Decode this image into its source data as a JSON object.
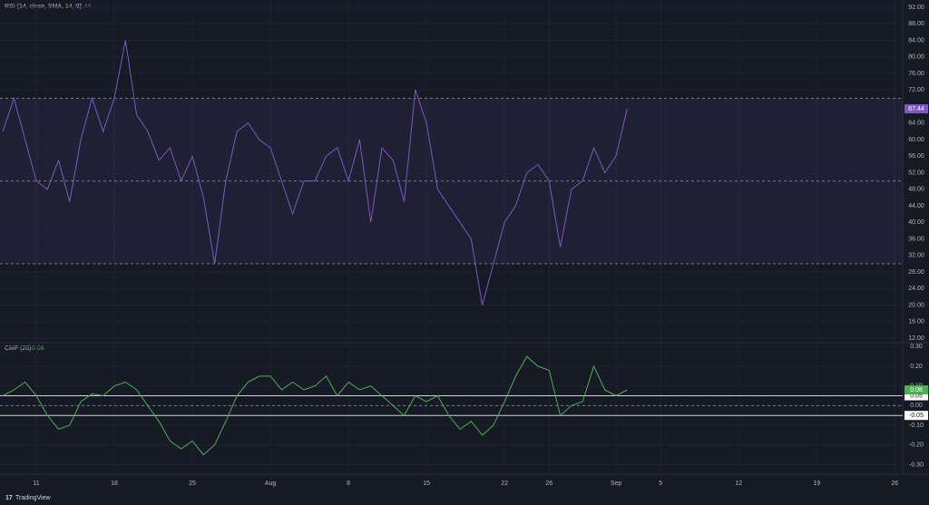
{
  "chart_data": [
    {
      "type": "line",
      "title": "RSI (14, close, SMA, 14, 2)",
      "color": "#7e57c2",
      "values": [
        62,
        70,
        60,
        50,
        48,
        55,
        45,
        60,
        70,
        62,
        70,
        84,
        66,
        62,
        55,
        58,
        50,
        56,
        46,
        30,
        50,
        62,
        64,
        60,
        58,
        50,
        42,
        50,
        50,
        56,
        58,
        50,
        60,
        40,
        58,
        55,
        45,
        72,
        64,
        48,
        44,
        40,
        36,
        20,
        30,
        40,
        44,
        52,
        54,
        50,
        34,
        48,
        50,
        58,
        52,
        56,
        67.44,
        null,
        null,
        null,
        null,
        null,
        null,
        null,
        null,
        null,
        null,
        null,
        null,
        null,
        null,
        null,
        null,
        null,
        null,
        null,
        null,
        null,
        null,
        null,
        null,
        null
      ],
      "bands": [
        70,
        50,
        30
      ],
      "band_color": "#7e57c2",
      "ylim": [
        10.9,
        93.75
      ],
      "yticks": [
        {
          "value": 92,
          "label": "92.00"
        },
        {
          "value": 88,
          "label": "88.00"
        },
        {
          "value": 84,
          "label": "84.00"
        },
        {
          "value": 80,
          "label": "80.00"
        },
        {
          "value": 76,
          "label": "76.00"
        },
        {
          "value": 72,
          "label": "72.00"
        },
        {
          "value": 64,
          "label": "64.00"
        },
        {
          "value": 60,
          "label": "60.00"
        },
        {
          "value": 56,
          "label": "56.00"
        },
        {
          "value": 52,
          "label": "52.00"
        },
        {
          "value": 48,
          "label": "48.00"
        },
        {
          "value": 44,
          "label": "44.00"
        },
        {
          "value": 40,
          "label": "40.00"
        },
        {
          "value": 36,
          "label": "36.00"
        },
        {
          "value": 32,
          "label": "32.00"
        },
        {
          "value": 28,
          "label": "28.00"
        },
        {
          "value": 24,
          "label": "24.00"
        },
        {
          "value": 20,
          "label": "20.00"
        },
        {
          "value": 16,
          "label": "16.00"
        },
        {
          "value": 12,
          "label": "12.00"
        }
      ],
      "grid": true
    },
    {
      "type": "line",
      "title": "CMF (20)",
      "color": "#4caf50",
      "categories": [
        null,
        null,
        null,
        "11",
        null,
        null,
        null,
        null,
        null,
        null,
        "18",
        null,
        null,
        null,
        null,
        null,
        null,
        "25",
        null,
        null,
        null,
        null,
        null,
        null,
        "Aug",
        null,
        null,
        null,
        null,
        null,
        null,
        "8",
        null,
        null,
        null,
        null,
        null,
        null,
        "15",
        null,
        null,
        null,
        null,
        null,
        null,
        "22",
        null,
        null,
        null,
        "26",
        null,
        null,
        null,
        null,
        null,
        "Sep",
        null,
        null,
        null,
        "5",
        null,
        null,
        null,
        null,
        null,
        null,
        "12",
        null,
        null,
        null,
        null,
        null,
        null,
        "19",
        null,
        null,
        null,
        null,
        null,
        null,
        "26",
        null
      ],
      "values": [
        0.05,
        0.08,
        0.12,
        0.05,
        -0.05,
        -0.12,
        -0.1,
        0.02,
        0.06,
        0.05,
        0.1,
        0.12,
        0.08,
        0,
        -0.08,
        -0.18,
        -0.22,
        -0.18,
        -0.25,
        -0.2,
        -0.08,
        0.05,
        0.12,
        0.15,
        0.15,
        0.08,
        0.12,
        0.08,
        0.1,
        0.15,
        0.05,
        0.12,
        0.08,
        0.1,
        0.05,
        0,
        -0.05,
        0.05,
        0.02,
        0.05,
        -0.05,
        -0.12,
        -0.08,
        -0.15,
        -0.1,
        0.02,
        0.15,
        0.25,
        0.2,
        0.18,
        -0.05,
        0,
        0.02,
        0.2,
        0.08,
        0.05,
        0.08,
        null,
        null,
        null,
        null,
        null,
        null,
        null,
        null,
        null,
        null,
        null,
        null,
        null,
        null,
        null,
        null,
        null,
        null,
        null,
        null,
        null,
        null,
        null,
        null,
        null
      ],
      "levels": [
        0.05,
        -0.05
      ],
      "ylim": [
        -0.335,
        0.32
      ],
      "yticks": [
        {
          "value": 0.3,
          "label": "0.30"
        },
        {
          "value": 0.2,
          "label": "0.20"
        },
        {
          "value": 0.1,
          "label": "0.10"
        },
        {
          "value": 0,
          "label": "0.00"
        },
        {
          "value": -0.1,
          "label": "-0.10"
        },
        {
          "value": -0.2,
          "label": "-0.20"
        },
        {
          "value": -0.3,
          "label": "-0.30"
        }
      ],
      "grid": true
    }
  ],
  "footer": {
    "brand": "TradingView"
  }
}
